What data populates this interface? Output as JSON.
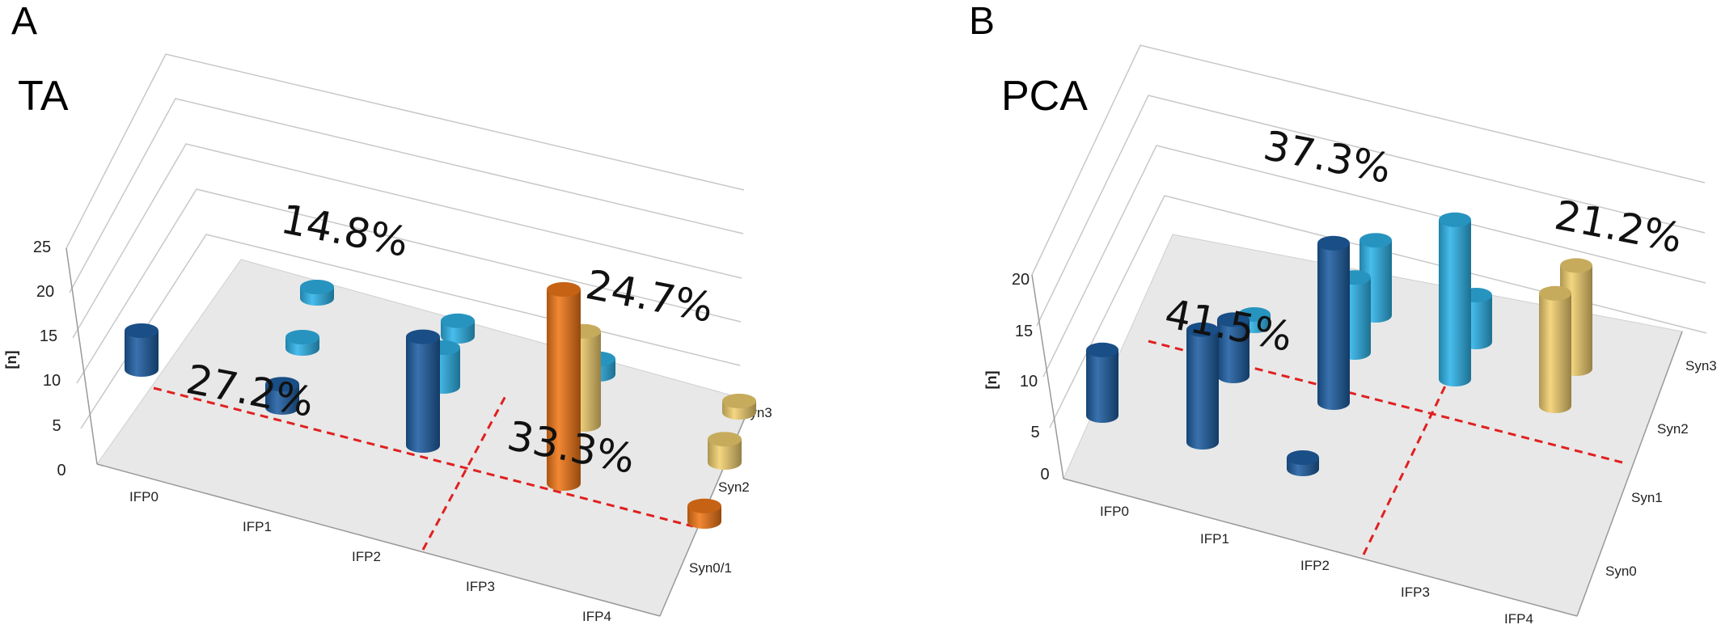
{
  "colors": {
    "dark_blue": "#1f5fa3",
    "light_blue": "#2fb4ea",
    "orange": "#f07818",
    "yellow": "#f2d070"
  },
  "chart_data": [
    {
      "type": "bar",
      "panel": "A",
      "title": "TA",
      "ylabel": "[n]",
      "ylim": [
        0,
        25
      ],
      "yticks": [
        "0",
        "5",
        "10",
        "15",
        "20",
        "25"
      ],
      "x_categories": [
        "IFP0",
        "IFP1",
        "IFP2",
        "IFP3",
        "IFP4"
      ],
      "z_categories": [
        "Syn0/1",
        "Syn2",
        "Syn3"
      ],
      "bars": [
        {
          "x": "IFP0",
          "z": "Syn0/1",
          "value": 5,
          "color": "dark_blue"
        },
        {
          "x": "IFP1",
          "z": "Syn0/1",
          "value": 3,
          "color": "dark_blue"
        },
        {
          "x": "IFP2",
          "z": "Syn0/1",
          "value": 14,
          "color": "dark_blue"
        },
        {
          "x": "IFP3",
          "z": "Syn0/1",
          "value": 25,
          "color": "orange"
        },
        {
          "x": "IFP4",
          "z": "Syn0/1",
          "value": 2,
          "color": "orange"
        },
        {
          "x": "IFP1",
          "z": "Syn2",
          "value": 1,
          "color": "light_blue"
        },
        {
          "x": "IFP2",
          "z": "Syn2",
          "value": 5,
          "color": "light_blue"
        },
        {
          "x": "IFP3",
          "z": "Syn2",
          "value": 12,
          "color": "yellow"
        },
        {
          "x": "IFP4",
          "z": "Syn2",
          "value": 3,
          "color": "yellow"
        },
        {
          "x": "IFP1",
          "z": "Syn3",
          "value": 1,
          "color": "light_blue"
        },
        {
          "x": "IFP2",
          "z": "Syn3",
          "value": 2,
          "color": "light_blue"
        },
        {
          "x": "IFP3",
          "z": "Syn3",
          "value": 2,
          "color": "light_blue"
        },
        {
          "x": "IFP4",
          "z": "Syn3",
          "value": 1,
          "color": "yellow"
        }
      ],
      "annotations": [
        "27.2%",
        "14.8%",
        "24.7%",
        "33.3%"
      ]
    },
    {
      "type": "bar",
      "panel": "B",
      "title": "PCA",
      "ylabel": "[n]",
      "ylim": [
        0,
        20
      ],
      "yticks": [
        "0",
        "5",
        "10",
        "15",
        "20"
      ],
      "x_categories": [
        "IFP0",
        "IFP1",
        "IFP2",
        "IFP3",
        "IFP4"
      ],
      "z_categories": [
        "Syn0",
        "Syn1",
        "Syn2",
        "Syn3"
      ],
      "bars": [
        {
          "x": "IFP0",
          "z": "Syn0",
          "value": 7,
          "color": "dark_blue"
        },
        {
          "x": "IFP1",
          "z": "Syn0",
          "value": 12,
          "color": "dark_blue"
        },
        {
          "x": "IFP2",
          "z": "Syn0",
          "value": 1,
          "color": "dark_blue"
        },
        {
          "x": "IFP1",
          "z": "Syn1",
          "value": 6,
          "color": "dark_blue"
        },
        {
          "x": "IFP2",
          "z": "Syn1",
          "value": 17,
          "color": "dark_blue"
        },
        {
          "x": "IFP1",
          "z": "Syn2",
          "value": 1,
          "color": "light_blue"
        },
        {
          "x": "IFP2",
          "z": "Syn2",
          "value": 8,
          "color": "light_blue"
        },
        {
          "x": "IFP3",
          "z": "Syn2",
          "value": 17,
          "color": "light_blue"
        },
        {
          "x": "IFP4",
          "z": "Syn2",
          "value": 12,
          "color": "yellow"
        },
        {
          "x": "IFP2",
          "z": "Syn3",
          "value": 8,
          "color": "light_blue"
        },
        {
          "x": "IFP3",
          "z": "Syn3",
          "value": 5,
          "color": "light_blue"
        },
        {
          "x": "IFP4",
          "z": "Syn3",
          "value": 11,
          "color": "yellow"
        }
      ],
      "annotations": [
        "41.5%",
        "37.3%",
        "21.2%"
      ]
    }
  ]
}
